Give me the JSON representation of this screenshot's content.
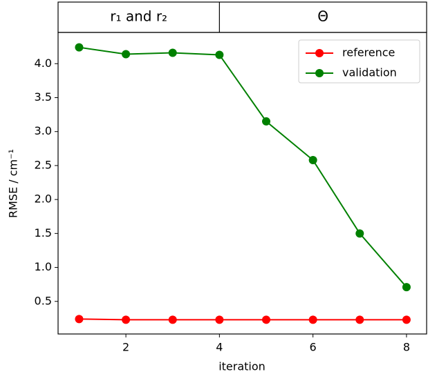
{
  "chart_data": {
    "type": "line",
    "header": {
      "labels": [
        "r₁ and r₂",
        "Θ"
      ],
      "divider": 4
    },
    "x_label": "iteration",
    "y_label": "RMSE / cm⁻¹",
    "x": [
      1,
      2,
      3,
      4,
      5,
      6,
      7,
      8
    ],
    "series": [
      {
        "name": "reference",
        "color": "#ff0000",
        "values": [
          0.24,
          0.23,
          0.23,
          0.23,
          0.23,
          0.23,
          0.23,
          0.23
        ]
      },
      {
        "name": "validation",
        "color": "#008000",
        "values": [
          4.24,
          4.14,
          4.16,
          4.13,
          3.15,
          2.58,
          1.5,
          0.71
        ]
      }
    ],
    "xlim": [
      0.55,
      8.43
    ],
    "xticks": [
      2,
      4,
      6,
      8
    ],
    "ylim": [
      0.02,
      4.46
    ],
    "yticks": [
      {
        "value": 0.5,
        "label": "0.5"
      },
      {
        "value": 1,
        "label": "1.0"
      },
      {
        "value": 1.5,
        "label": "1.5"
      },
      {
        "value": 2,
        "label": "2.0"
      },
      {
        "value": 2.5,
        "label": "2.5"
      },
      {
        "value": 3,
        "label": "3.0"
      },
      {
        "value": 3.5,
        "label": "3.5"
      },
      {
        "value": 4,
        "label": "4.0"
      }
    ],
    "legend": "upper right",
    "grid": false
  }
}
